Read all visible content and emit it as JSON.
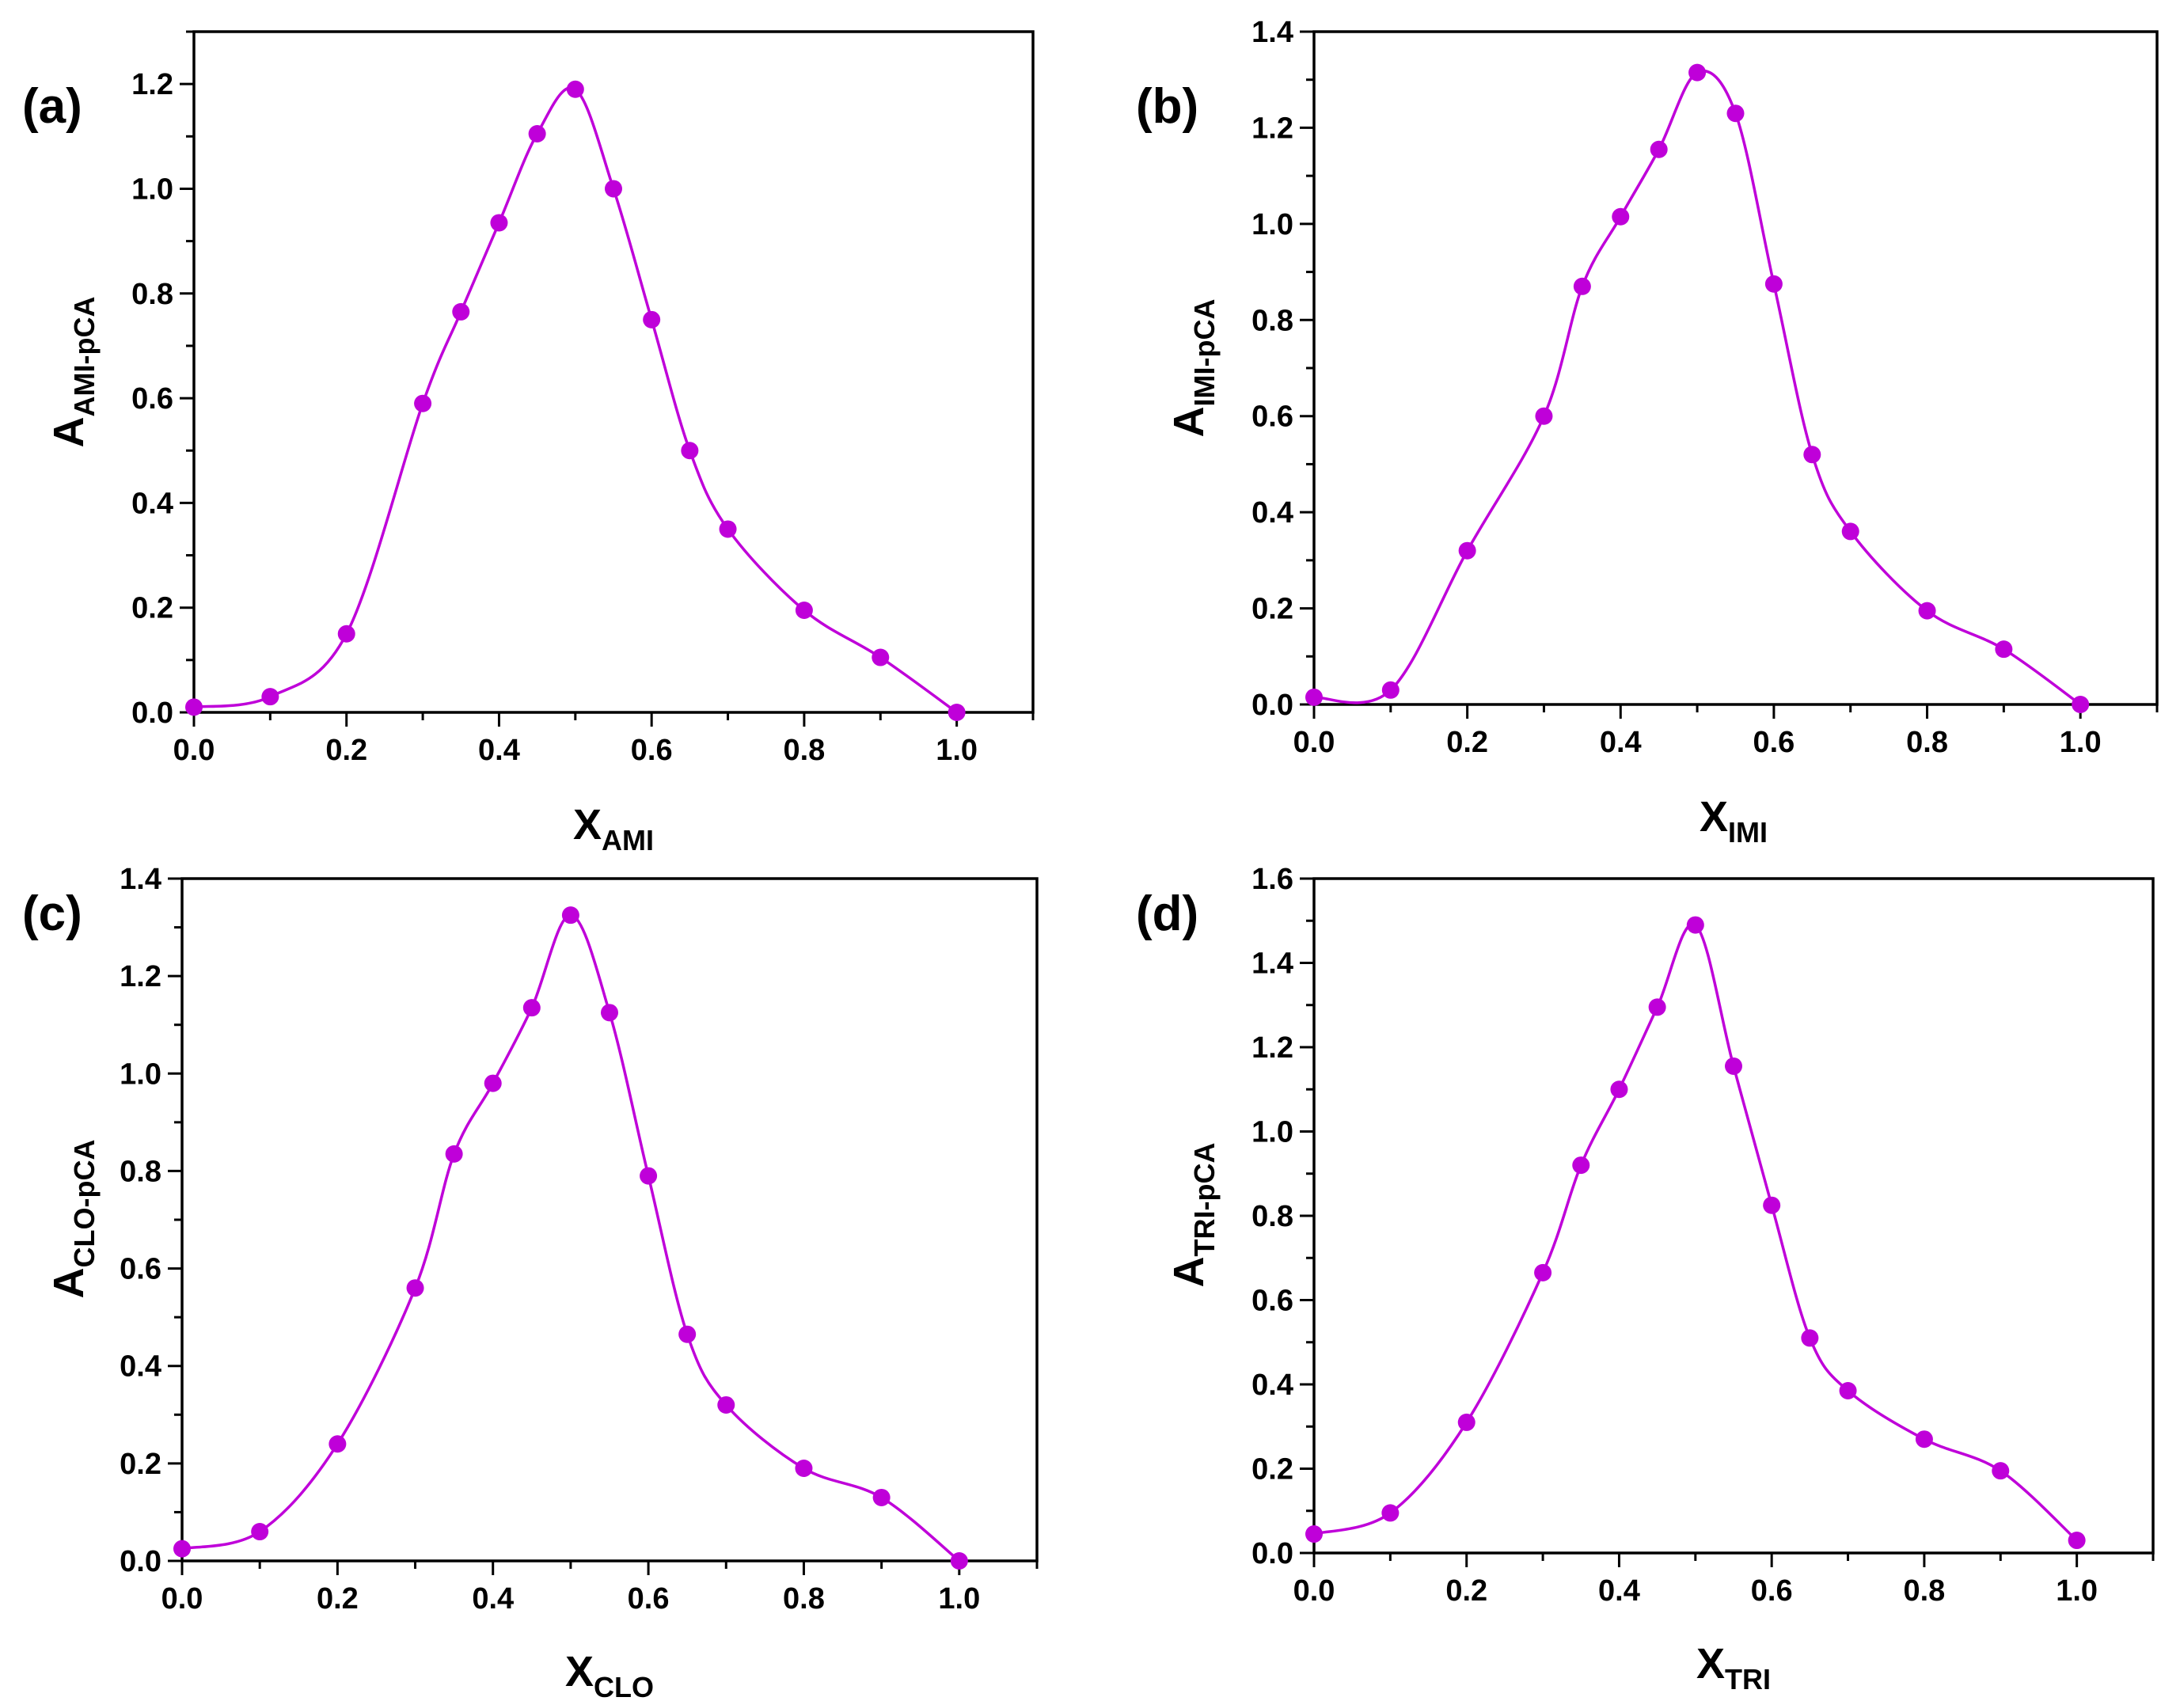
{
  "colors": {
    "series": "#bf00d9",
    "axis": "#000000"
  },
  "chart_data": [
    {
      "type": "line",
      "panel_label": "(a)",
      "xlabel_main": "X",
      "xlabel_sub": "AMI",
      "ylabel_main": "A",
      "ylabel_sub": "AMI-pCA",
      "xlim": [
        0.0,
        1.1
      ],
      "ylim": [
        0.0,
        1.3
      ],
      "xticks": [
        "0.0",
        "0.2",
        "0.4",
        "0.6",
        "0.8",
        "1.0"
      ],
      "yticks": [
        "0.0",
        "0.2",
        "0.4",
        "0.6",
        "0.8",
        "1.0",
        "1.2"
      ],
      "ytick_step": 0.2,
      "x": [
        0.0,
        0.1,
        0.2,
        0.3,
        0.35,
        0.4,
        0.45,
        0.5,
        0.55,
        0.6,
        0.65,
        0.7,
        0.8,
        0.9,
        1.0
      ],
      "y": [
        0.01,
        0.03,
        0.15,
        0.59,
        0.765,
        0.935,
        1.105,
        1.19,
        1.0,
        0.75,
        0.5,
        0.35,
        0.195,
        0.105,
        0.0
      ]
    },
    {
      "type": "line",
      "panel_label": "(b)",
      "xlabel_main": "X",
      "xlabel_sub": "IMI",
      "ylabel_main": "A",
      "ylabel_sub": "IMI-pCA",
      "xlim": [
        0.0,
        1.1
      ],
      "ylim": [
        0.0,
        1.4
      ],
      "xticks": [
        "0.0",
        "0.2",
        "0.4",
        "0.6",
        "0.8",
        "1.0"
      ],
      "yticks": [
        "0.0",
        "0.2",
        "0.4",
        "0.6",
        "0.8",
        "1.0",
        "1.2",
        "1.4"
      ],
      "ytick_step": 0.2,
      "x": [
        0.0,
        0.1,
        0.2,
        0.3,
        0.35,
        0.4,
        0.45,
        0.5,
        0.55,
        0.6,
        0.65,
        0.7,
        0.8,
        0.9,
        1.0
      ],
      "y": [
        0.015,
        0.03,
        0.32,
        0.6,
        0.87,
        1.015,
        1.155,
        1.315,
        1.23,
        0.875,
        0.52,
        0.36,
        0.195,
        0.115,
        0.0
      ]
    },
    {
      "type": "line",
      "panel_label": "(c)",
      "xlabel_main": "X",
      "xlabel_sub": "CLO",
      "ylabel_main": "A",
      "ylabel_sub": "CLO-pCA",
      "xlim": [
        0.0,
        1.1
      ],
      "ylim": [
        0.0,
        1.4
      ],
      "xticks": [
        "0.0",
        "0.2",
        "0.4",
        "0.6",
        "0.8",
        "1.0"
      ],
      "yticks": [
        "0.0",
        "0.2",
        "0.4",
        "0.6",
        "0.8",
        "1.0",
        "1.2",
        "1.4"
      ],
      "ytick_step": 0.2,
      "x": [
        0.0,
        0.1,
        0.2,
        0.3,
        0.35,
        0.4,
        0.45,
        0.5,
        0.55,
        0.6,
        0.65,
        0.7,
        0.8,
        0.9,
        1.0
      ],
      "y": [
        0.025,
        0.06,
        0.24,
        0.56,
        0.835,
        0.98,
        1.135,
        1.325,
        1.125,
        0.79,
        0.465,
        0.32,
        0.19,
        0.13,
        0.0
      ]
    },
    {
      "type": "line",
      "panel_label": "(d)",
      "xlabel_main": "X",
      "xlabel_sub": "TRI",
      "ylabel_main": "A",
      "ylabel_sub": "TRI-pCA",
      "xlim": [
        0.0,
        1.1
      ],
      "ylim": [
        0.0,
        1.6
      ],
      "xticks": [
        "0.0",
        "0.2",
        "0.4",
        "0.6",
        "0.8",
        "1.0"
      ],
      "yticks": [
        "0.0",
        "0.2",
        "0.4",
        "0.6",
        "0.8",
        "1.0",
        "1.2",
        "1.4",
        "1.6"
      ],
      "ytick_step": 0.2,
      "x": [
        0.0,
        0.1,
        0.2,
        0.3,
        0.35,
        0.4,
        0.45,
        0.5,
        0.55,
        0.6,
        0.65,
        0.7,
        0.8,
        0.9,
        1.0
      ],
      "y": [
        0.045,
        0.095,
        0.31,
        0.665,
        0.92,
        1.1,
        1.295,
        1.49,
        1.155,
        0.825,
        0.51,
        0.385,
        0.27,
        0.195,
        0.03
      ]
    }
  ]
}
